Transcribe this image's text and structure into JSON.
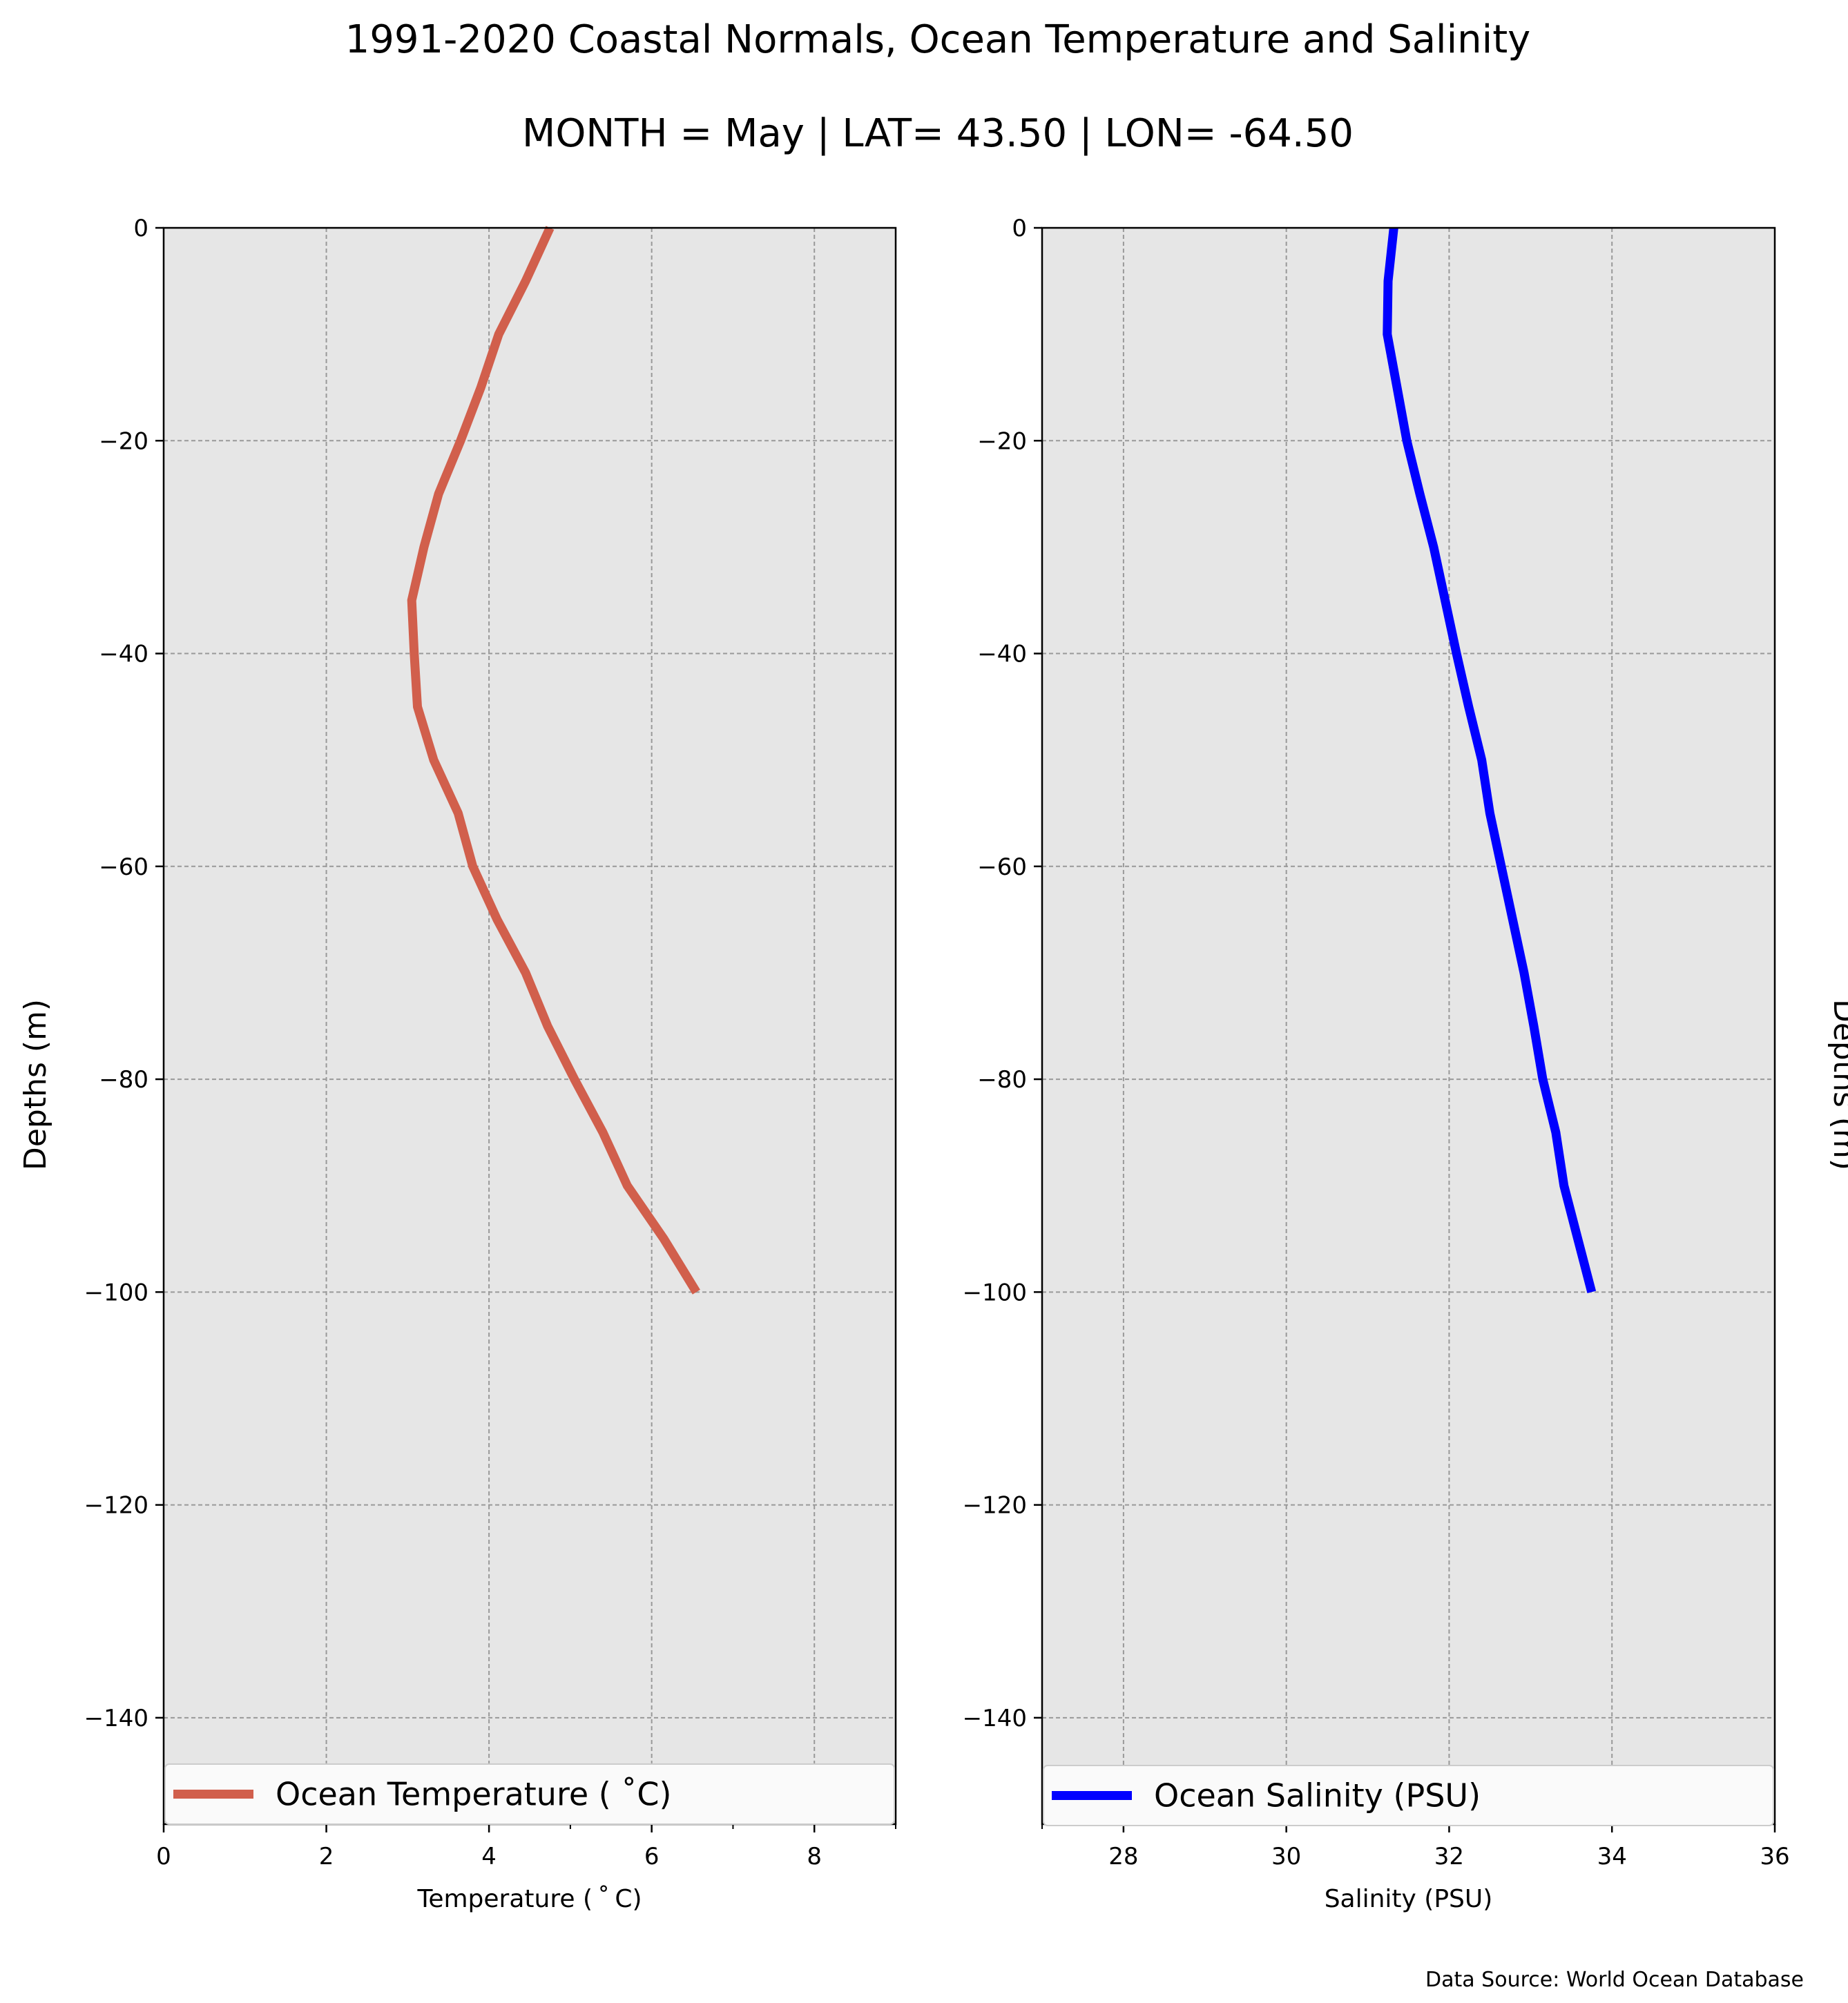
{
  "title": "1991-2020 Coastal Normals, Ocean Temperature and Salinity",
  "subtitle": "MONTH = May | LAT= 43.50 | LON= -64.50",
  "source": "Data Source: World Ocean Database",
  "colors": {
    "background": "#ffffff",
    "plot_bg": "#e6e6e6",
    "grid": "#999999",
    "temperature": "#d15f4c",
    "salinity": "#0000ff"
  },
  "chart_data": [
    {
      "type": "line",
      "xlabel": "Temperature ($^\\circ$C)",
      "xlabel_display": "Temperature ( ˚ C)",
      "ylabel": "Depths (m)",
      "xlim": [
        0,
        9
      ],
      "ylim": [
        -150,
        0
      ],
      "x_ticks": [
        0,
        2,
        4,
        6,
        8
      ],
      "x_tick_labels": [
        "0",
        "2",
        "4",
        "6",
        "8"
      ],
      "x_minor_ticks": [
        5,
        7,
        9
      ],
      "y_ticks": [
        0,
        -20,
        -40,
        -60,
        -80,
        -100,
        -120,
        -140
      ],
      "y_tick_labels": [
        "0",
        "−20",
        "−40",
        "−60",
        "−80",
        "−100",
        "−120",
        "−140"
      ],
      "grid": true,
      "legend_position": "bottom",
      "ylabel_side": "left",
      "series": [
        {
          "name": "Ocean Temperature ( ˚C)",
          "color": "#d15f4c",
          "x": [
            4.75,
            4.45,
            4.12,
            3.9,
            3.65,
            3.38,
            3.2,
            3.05,
            3.08,
            3.12,
            3.32,
            3.62,
            3.8,
            4.1,
            4.45,
            4.72,
            5.05,
            5.4,
            5.7,
            6.15,
            6.55
          ],
          "y": [
            0,
            -5,
            -10,
            -15,
            -20,
            -25,
            -30,
            -35,
            -40,
            -45,
            -50,
            -55,
            -60,
            -65,
            -70,
            -75,
            -80,
            -85,
            -90,
            -95,
            -100
          ]
        }
      ]
    },
    {
      "type": "line",
      "xlabel": "Salinity (PSU)",
      "ylabel": "Depths (m)",
      "xlim": [
        27,
        36
      ],
      "ylim": [
        -150,
        0
      ],
      "x_ticks": [
        28,
        30,
        32,
        34,
        36
      ],
      "x_tick_labels": [
        "28",
        "30",
        "32",
        "34",
        "36"
      ],
      "x_minor_ticks": [
        27
      ],
      "y_ticks": [
        0,
        -20,
        -40,
        -60,
        -80,
        -100,
        -120,
        -140
      ],
      "y_tick_labels": [
        "0",
        "−20",
        "−40",
        "−60",
        "−80",
        "−100",
        "−120",
        "−140"
      ],
      "grid": true,
      "legend_position": "bottom",
      "ylabel_side": "right",
      "series": [
        {
          "name": "Ocean Salinity (PSU)",
          "color": "#0000ff",
          "x": [
            31.32,
            31.25,
            31.24,
            31.36,
            31.48,
            31.64,
            31.81,
            31.95,
            32.09,
            32.24,
            32.4,
            32.5,
            32.64,
            32.78,
            32.92,
            33.04,
            33.15,
            33.31,
            33.41,
            33.58,
            33.75
          ],
          "y": [
            0,
            -5,
            -10,
            -15,
            -20,
            -25,
            -30,
            -35,
            -40,
            -45,
            -50,
            -55,
            -60,
            -65,
            -70,
            -75,
            -80,
            -85,
            -90,
            -95,
            -100
          ]
        }
      ]
    }
  ]
}
